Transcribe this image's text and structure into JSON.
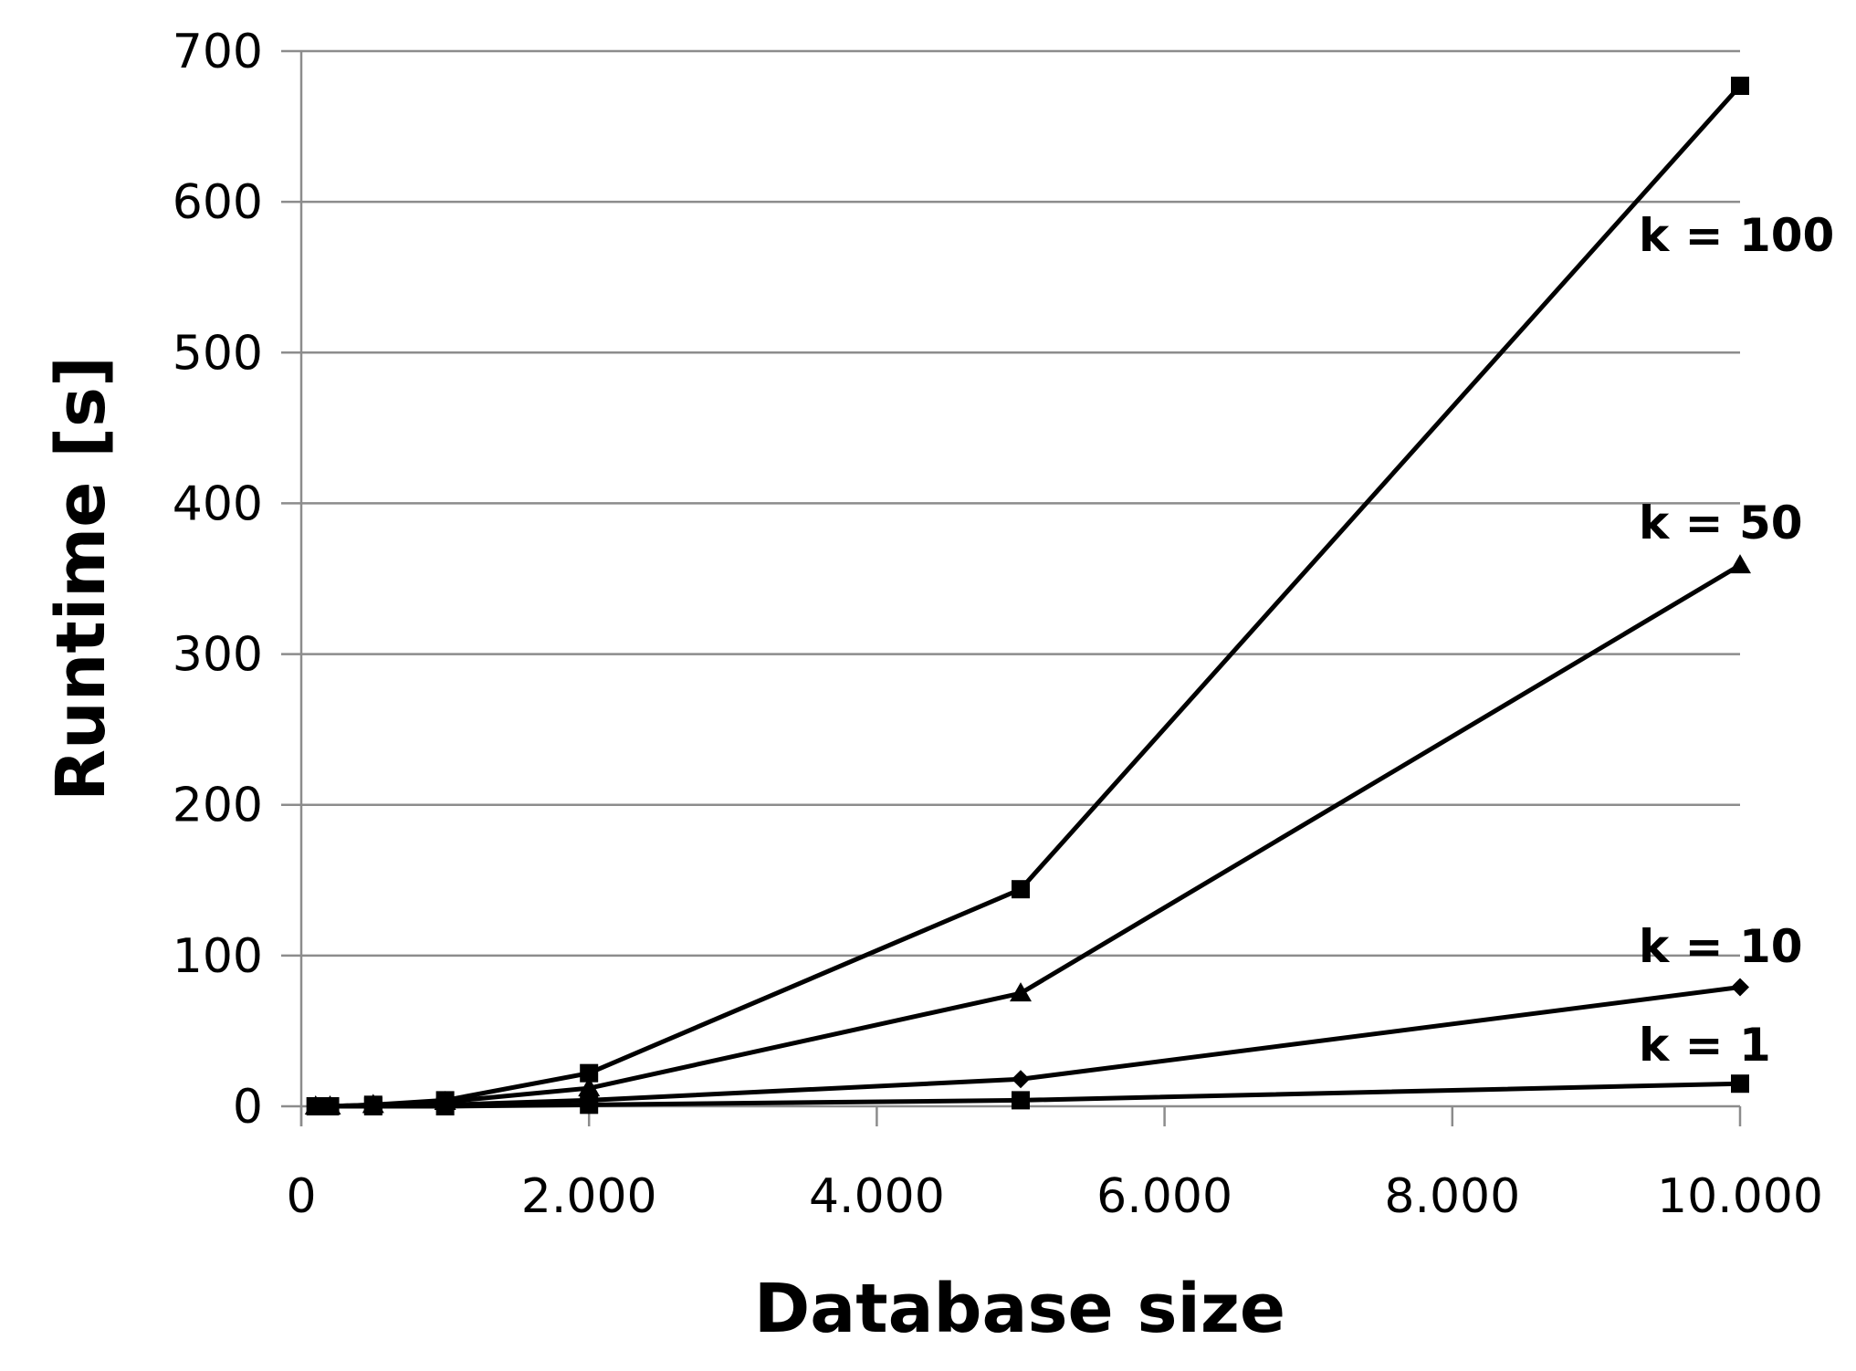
{
  "chart_data": {
    "type": "line",
    "xlabel": "Database size",
    "ylabel": "Runtime [s]",
    "xlim": [
      0,
      10000
    ],
    "ylim": [
      0,
      700
    ],
    "x_ticks": [
      0,
      2000,
      4000,
      6000,
      8000,
      10000
    ],
    "x_tick_labels": [
      "0",
      "2.000",
      "4.000",
      "6.000",
      "8.000",
      "10.000"
    ],
    "y_ticks": [
      0,
      100,
      200,
      300,
      400,
      500,
      600,
      700
    ],
    "y_tick_labels": [
      "0",
      "100",
      "200",
      "300",
      "400",
      "500",
      "600",
      "700"
    ],
    "grid": "horizontal",
    "legend": "none",
    "series": [
      {
        "name": "k = 100",
        "marker": "square",
        "x": [
          100,
          200,
          500,
          1000,
          2000,
          5000,
          10000
        ],
        "values": [
          0,
          0,
          1,
          4,
          22,
          144,
          677
        ]
      },
      {
        "name": "k = 50",
        "marker": "triangle",
        "x": [
          100,
          200,
          500,
          1000,
          2000,
          5000,
          10000
        ],
        "values": [
          0,
          0,
          1,
          3,
          12,
          75,
          359
        ]
      },
      {
        "name": "k = 10",
        "marker": "diamond",
        "x": [
          100,
          200,
          500,
          1000,
          2000,
          5000,
          10000
        ],
        "values": [
          0,
          0,
          0,
          1,
          4,
          18,
          79
        ]
      },
      {
        "name": "k = 1",
        "marker": "square",
        "x": [
          100,
          200,
          500,
          1000,
          2000,
          5000,
          10000
        ],
        "values": [
          0,
          0,
          0,
          0,
          1,
          4,
          15
        ]
      }
    ]
  }
}
